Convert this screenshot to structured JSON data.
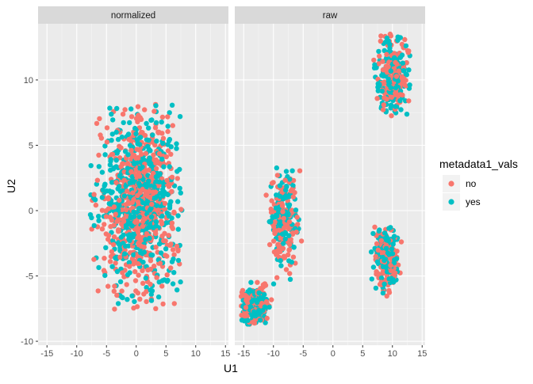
{
  "chart_data": {
    "type": "scatter",
    "facet_variable": "normalization",
    "panels": [
      {
        "label": "normalized",
        "clusters": [
          {
            "name": "main",
            "center": [
              0.5,
              0.5
            ],
            "spread": [
              3.4,
              3.3
            ],
            "points": 1100,
            "extent": {
              "x": [
                -7.8,
                7.7
              ],
              "y": [
                -7.7,
                8.2
              ]
            }
          }
        ]
      },
      {
        "label": "raw",
        "clusters": [
          {
            "name": "upper-right",
            "center": [
              10.0,
              10.3
            ],
            "spread": [
              1.3,
              1.6
            ],
            "points": 260,
            "extent": {
              "x": [
                6.8,
                13.0
              ],
              "y": [
                7.2,
                13.6
              ]
            }
          },
          {
            "name": "middle-left",
            "center": [
              -8.3,
              -0.6
            ],
            "spread": [
              1.1,
              2.1
            ],
            "points": 260,
            "extent": {
              "x": [
                -12.0,
                -5.2
              ],
              "y": [
                -5.8,
                3.3
              ]
            }
          },
          {
            "name": "lower-right",
            "center": [
              9.0,
              -3.7
            ],
            "spread": [
              1.0,
              1.3
            ],
            "points": 240,
            "extent": {
              "x": [
                6.4,
                11.8
              ],
              "y": [
                -6.6,
                -1.2
              ]
            }
          },
          {
            "name": "lower-left",
            "center": [
              -13.2,
              -7.3
            ],
            "spread": [
              1.2,
              0.7
            ],
            "points": 240,
            "extent": {
              "x": [
                -15.5,
                -10.3
              ],
              "y": [
                -9.0,
                -4.8
              ]
            }
          }
        ]
      }
    ],
    "xlabel": "U1",
    "ylabel": "U2",
    "xlim": [
      -16.5,
      15.5
    ],
    "ylim": [
      -10.3,
      14.3
    ],
    "x_breaks": [
      -15,
      -10,
      -5,
      0,
      5,
      10,
      15
    ],
    "x_tick_labels": [
      "-15",
      "-10",
      "-5",
      "0",
      "5",
      "10",
      "15"
    ],
    "y_breaks": [
      -10,
      -5,
      0,
      5,
      10
    ],
    "y_tick_labels": [
      "-10",
      "-5",
      "0",
      "5",
      "10"
    ],
    "grid": true,
    "legend": {
      "title": "metadata1_vals",
      "position": "right",
      "entries": [
        {
          "label": "no",
          "color": "#F8766D"
        },
        {
          "label": "yes",
          "color": "#00BFC4"
        }
      ]
    }
  },
  "colors": {
    "panel_background": "#EBEBEB",
    "grid_major": "#FFFFFF",
    "strip_background": "#D9D9D9",
    "axis_text": "#4D4D4D",
    "title_text": "#1A1A1A"
  }
}
